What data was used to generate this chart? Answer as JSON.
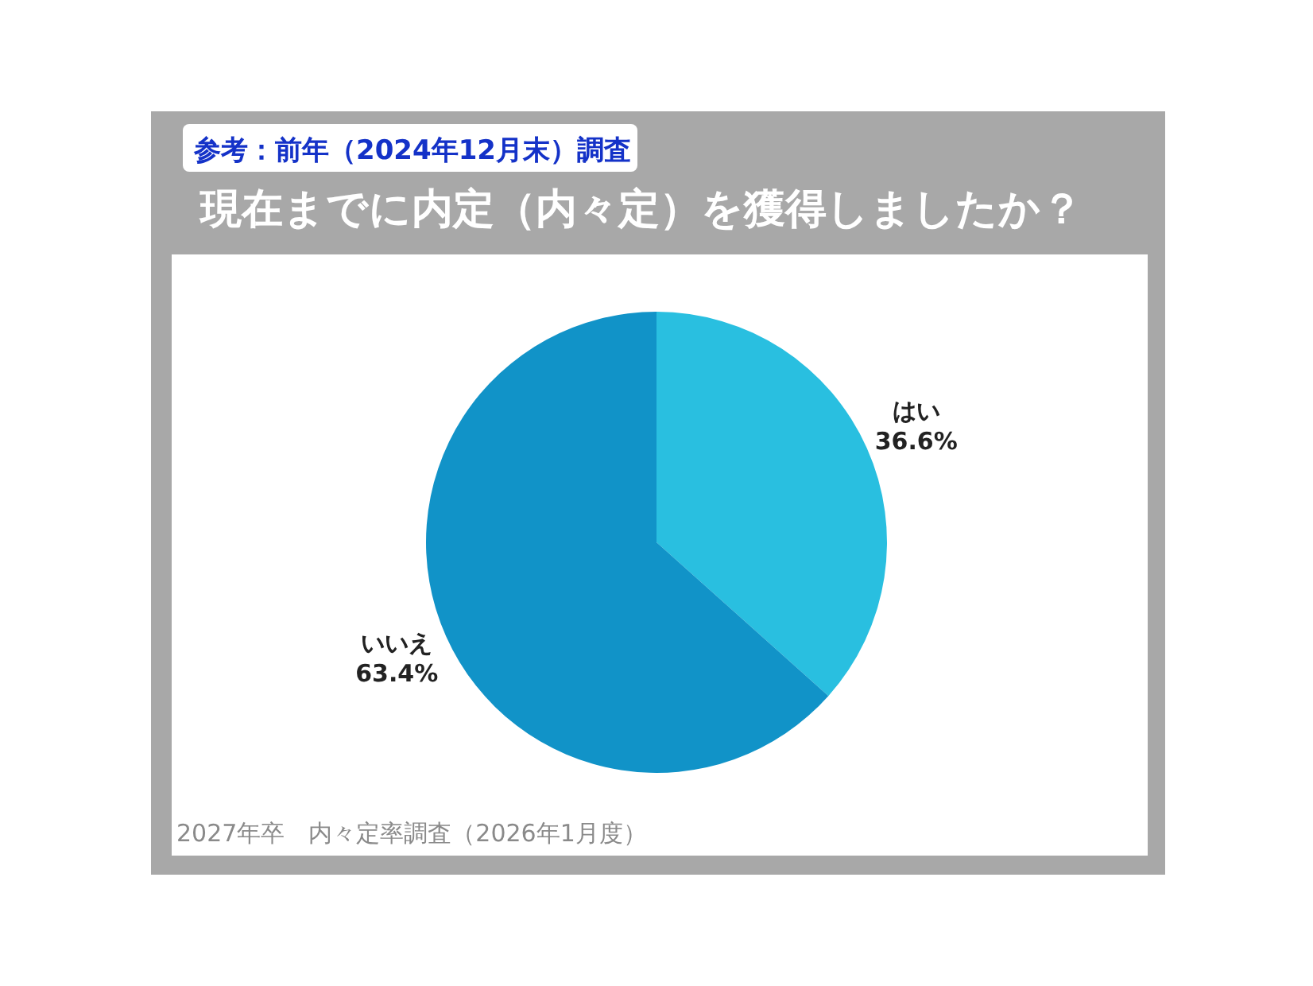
{
  "chart_data": {
    "type": "pie",
    "title": "現在までに内定（内々定）を獲得しましたか？",
    "subtitle": "参考：前年（2024年12月末）調査",
    "categories": [
      "はい",
      "いいえ"
    ],
    "values": [
      36.6,
      63.4
    ],
    "colors": [
      "#29bfe0",
      "#1193c8"
    ],
    "value_labels": [
      "36.6%",
      "63.4%"
    ],
    "annotations": [
      "2027年卒　内々定率調査（2026年1月度）"
    ]
  }
}
